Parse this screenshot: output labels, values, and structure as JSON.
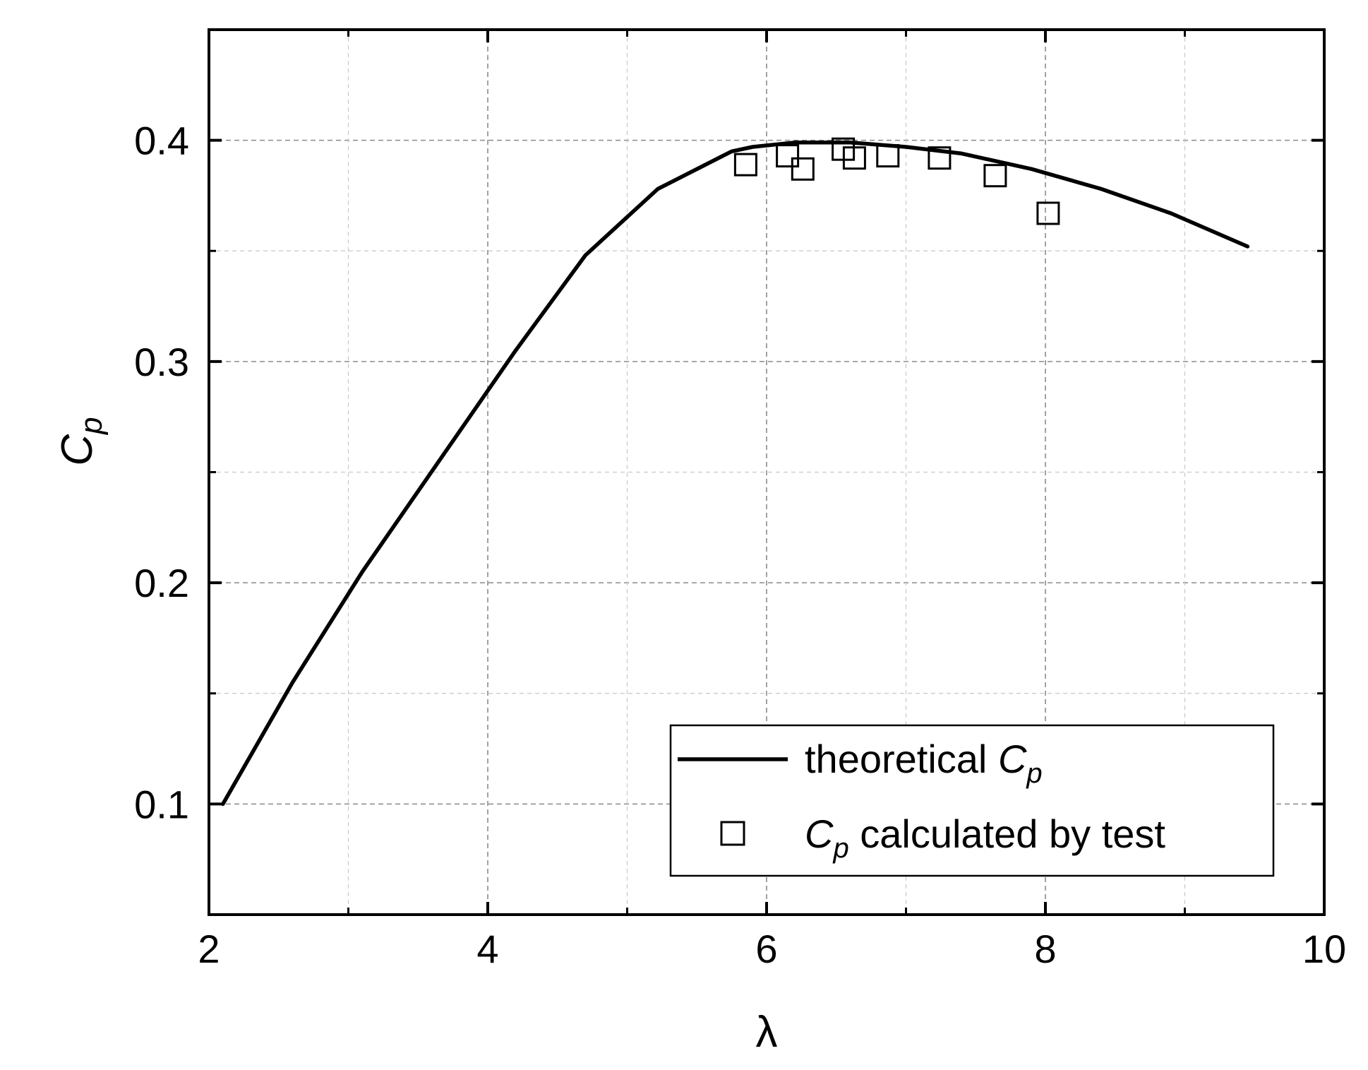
{
  "chart_data": {
    "type": "line",
    "title": "",
    "xlabel": "λ",
    "ylabel_main": "C",
    "ylabel_sub": "p",
    "xlim": [
      2,
      10
    ],
    "ylim": [
      0.05,
      0.45
    ],
    "x_ticks": [
      2,
      4,
      6,
      8,
      10
    ],
    "x_tick_labels": [
      "2",
      "4",
      "6",
      "8",
      "10"
    ],
    "y_ticks": [
      0.1,
      0.2,
      0.3,
      0.4
    ],
    "y_tick_labels": [
      "0.1",
      "0.2",
      "0.3",
      "0.4"
    ],
    "x_minor_ticks": [
      3,
      5,
      7,
      9
    ],
    "y_minor_ticks": [
      0.15,
      0.25,
      0.35
    ],
    "grid": true,
    "legend_position": "bottom-right",
    "series": [
      {
        "name_main": "theoretical ",
        "name_c": "C",
        "name_sub": "p",
        "name_after": "",
        "style": "line",
        "color": "#000000",
        "x": [
          2.1,
          2.6,
          3.1,
          3.65,
          4.2,
          4.7,
          5.22,
          5.75,
          5.9,
          6.2,
          6.6,
          7.0,
          7.4,
          7.9,
          8.4,
          8.9,
          9.45
        ],
        "y": [
          0.1,
          0.155,
          0.205,
          0.255,
          0.305,
          0.348,
          0.378,
          0.395,
          0.397,
          0.399,
          0.399,
          0.397,
          0.394,
          0.387,
          0.378,
          0.367,
          0.352
        ]
      },
      {
        "name_main": "",
        "name_c": "C",
        "name_sub": "p",
        "name_after": " calculated by test",
        "style": "marker-square-open",
        "color": "#000000",
        "x": [
          5.85,
          6.15,
          6.26,
          6.55,
          6.63,
          6.87,
          7.24,
          7.64,
          8.02
        ],
        "y": [
          0.389,
          0.393,
          0.387,
          0.396,
          0.392,
          0.393,
          0.392,
          0.384,
          0.367
        ]
      }
    ]
  }
}
